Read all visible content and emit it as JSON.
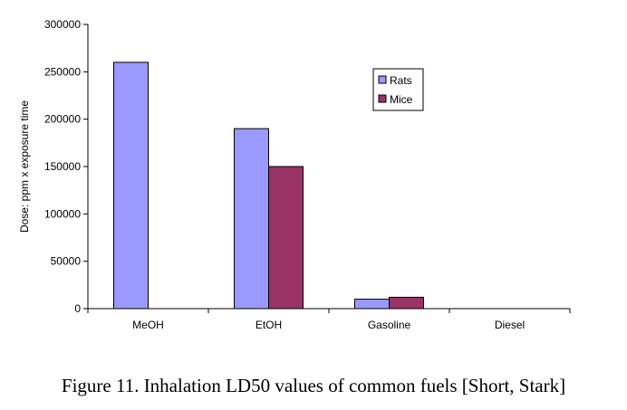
{
  "chart_data": {
    "type": "bar",
    "title": "",
    "xlabel": "",
    "ylabel": "Dose:  ppm x exposure time",
    "categories": [
      "MeOH",
      "EtOH",
      "Gasoline",
      "Diesel"
    ],
    "series": [
      {
        "name": "Rats",
        "color": "#9999ff",
        "values": [
          260000,
          190000,
          10000,
          0
        ]
      },
      {
        "name": "Mice",
        "color": "#993366",
        "values": [
          0,
          150000,
          12000,
          0
        ]
      }
    ],
    "ylim": [
      0,
      300000
    ],
    "yticks": [
      "0",
      "50000",
      "100000",
      "150000",
      "200000",
      "250000",
      "300000"
    ],
    "grid": false,
    "legend_position": "top-right"
  },
  "caption": "Figure 11.   Inhalation LD50 values of common fuels [Short, Stark]"
}
